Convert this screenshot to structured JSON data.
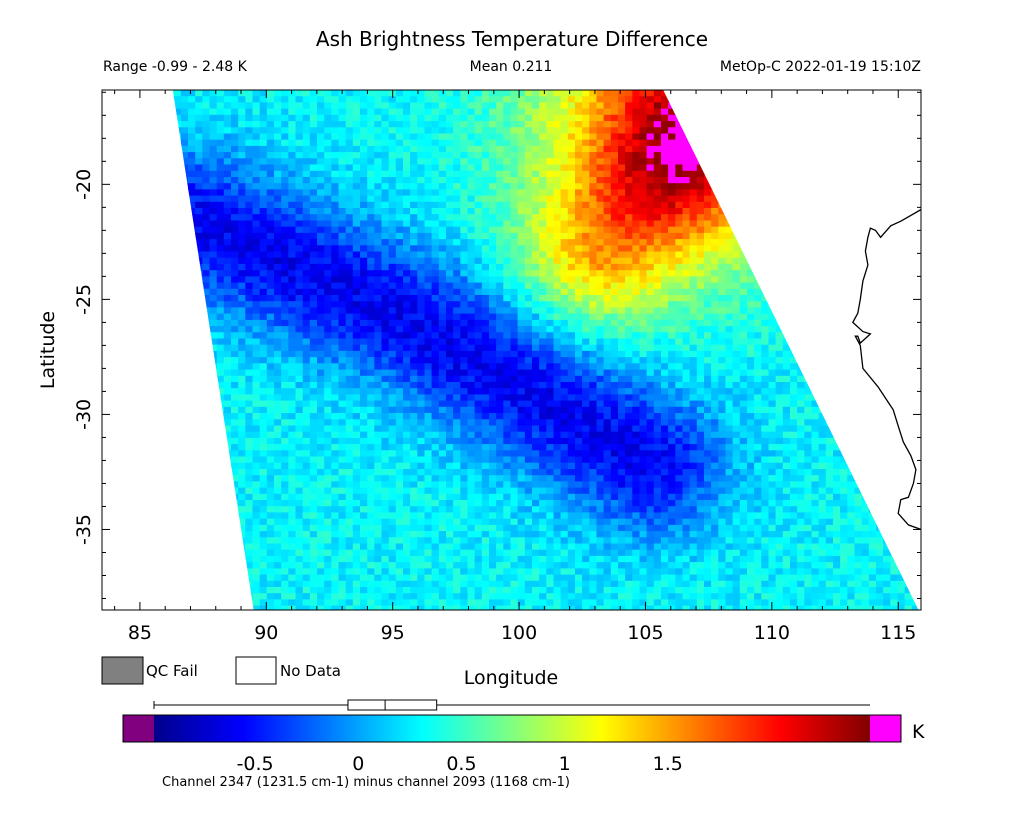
{
  "chart_data": {
    "type": "heatmap",
    "title": "Ash Brightness Temperature Difference",
    "range_text": "Range -0.99 - 2.48 K",
    "mean_text": "Mean 0.211",
    "satellite_text": "MetOp-C 2022-01-19 15:10Z",
    "xlabel": "Longitude",
    "ylabel": "Latitude",
    "xlim": [
      83.5,
      115.9
    ],
    "ylim": [
      -38.5,
      -15.9
    ],
    "x_ticks": [
      85,
      90,
      95,
      100,
      105,
      110,
      115
    ],
    "x_tick_labels": [
      "85",
      "90",
      "95",
      "100",
      "105",
      "110",
      "115"
    ],
    "y_ticks": [
      -20,
      -25,
      -30,
      -35
    ],
    "y_tick_labels": [
      "-20",
      "-25",
      "-30",
      "-35"
    ],
    "swath_corners": [
      [
        86.3,
        -15.9
      ],
      [
        105.7,
        -15.9
      ],
      [
        115.8,
        -38.5
      ],
      [
        89.5,
        -38.5
      ]
    ],
    "pattern_features": [
      {
        "name": "low band (ash signal)",
        "center": [
          [
            87,
            -21.5
          ],
          [
            96,
            -26
          ],
          [
            105,
            -32
          ]
        ],
        "value": -0.7
      },
      {
        "name": "warm region",
        "center": [
          [
            103,
            -23
          ],
          [
            107,
            -18
          ]
        ],
        "value": 1.3
      },
      {
        "name": "saturated corner",
        "center": [
          [
            106.5,
            -17
          ]
        ],
        "value": 2.0
      }
    ],
    "colorbar": {
      "min": -0.99,
      "max": 2.48,
      "tick_values": [
        -0.5,
        0,
        0.5,
        1,
        1.5
      ],
      "tick_labels": [
        "-0.5",
        "0",
        "0.5",
        "1",
        "1.5"
      ],
      "unit": "K",
      "below_color": "#800080",
      "above_color": "#ff00ff",
      "colors": [
        "#00008b",
        "#0000ff",
        "#0080ff",
        "#00ffff",
        "#80ff80",
        "#ffff00",
        "#ff8000",
        "#ff0000",
        "#800000"
      ],
      "boxplot": {
        "whisker_low": -0.99,
        "q1": -0.05,
        "median": 0.13,
        "q3": 0.38,
        "whisker_high": 2.48
      }
    },
    "legend": {
      "qc_fail": "QC Fail",
      "no_data": "No Data",
      "qc_fail_color": "#808080",
      "no_data_color": "#ffffff"
    },
    "caption": "Channel 2347 (1231.5 cm-1) minus channel 2093 (1168 cm-1)",
    "coastline": [
      [
        115.9,
        -21.1
      ],
      [
        115.1,
        -21.6
      ],
      [
        114.7,
        -21.8
      ],
      [
        114.3,
        -22.3
      ],
      [
        114.1,
        -22.0
      ],
      [
        113.9,
        -21.9
      ],
      [
        113.8,
        -22.3
      ],
      [
        113.7,
        -22.9
      ],
      [
        113.8,
        -23.5
      ],
      [
        113.6,
        -24.2
      ],
      [
        113.5,
        -25.0
      ],
      [
        113.4,
        -25.6
      ],
      [
        113.2,
        -26.0
      ],
      [
        113.6,
        -26.4
      ],
      [
        113.9,
        -26.5
      ],
      [
        113.5,
        -26.9
      ],
      [
        113.4,
        -26.6
      ],
      [
        113.3,
        -26.6
      ],
      [
        113.5,
        -27.0
      ],
      [
        113.6,
        -28.0
      ],
      [
        114.2,
        -28.8
      ],
      [
        114.8,
        -29.8
      ],
      [
        115.0,
        -30.5
      ],
      [
        115.2,
        -31.2
      ],
      [
        115.5,
        -31.8
      ],
      [
        115.7,
        -32.4
      ],
      [
        115.6,
        -33.0
      ],
      [
        115.4,
        -33.6
      ],
      [
        115.1,
        -33.7
      ],
      [
        115.0,
        -34.3
      ],
      [
        115.4,
        -34.8
      ],
      [
        115.9,
        -35.0
      ]
    ]
  }
}
